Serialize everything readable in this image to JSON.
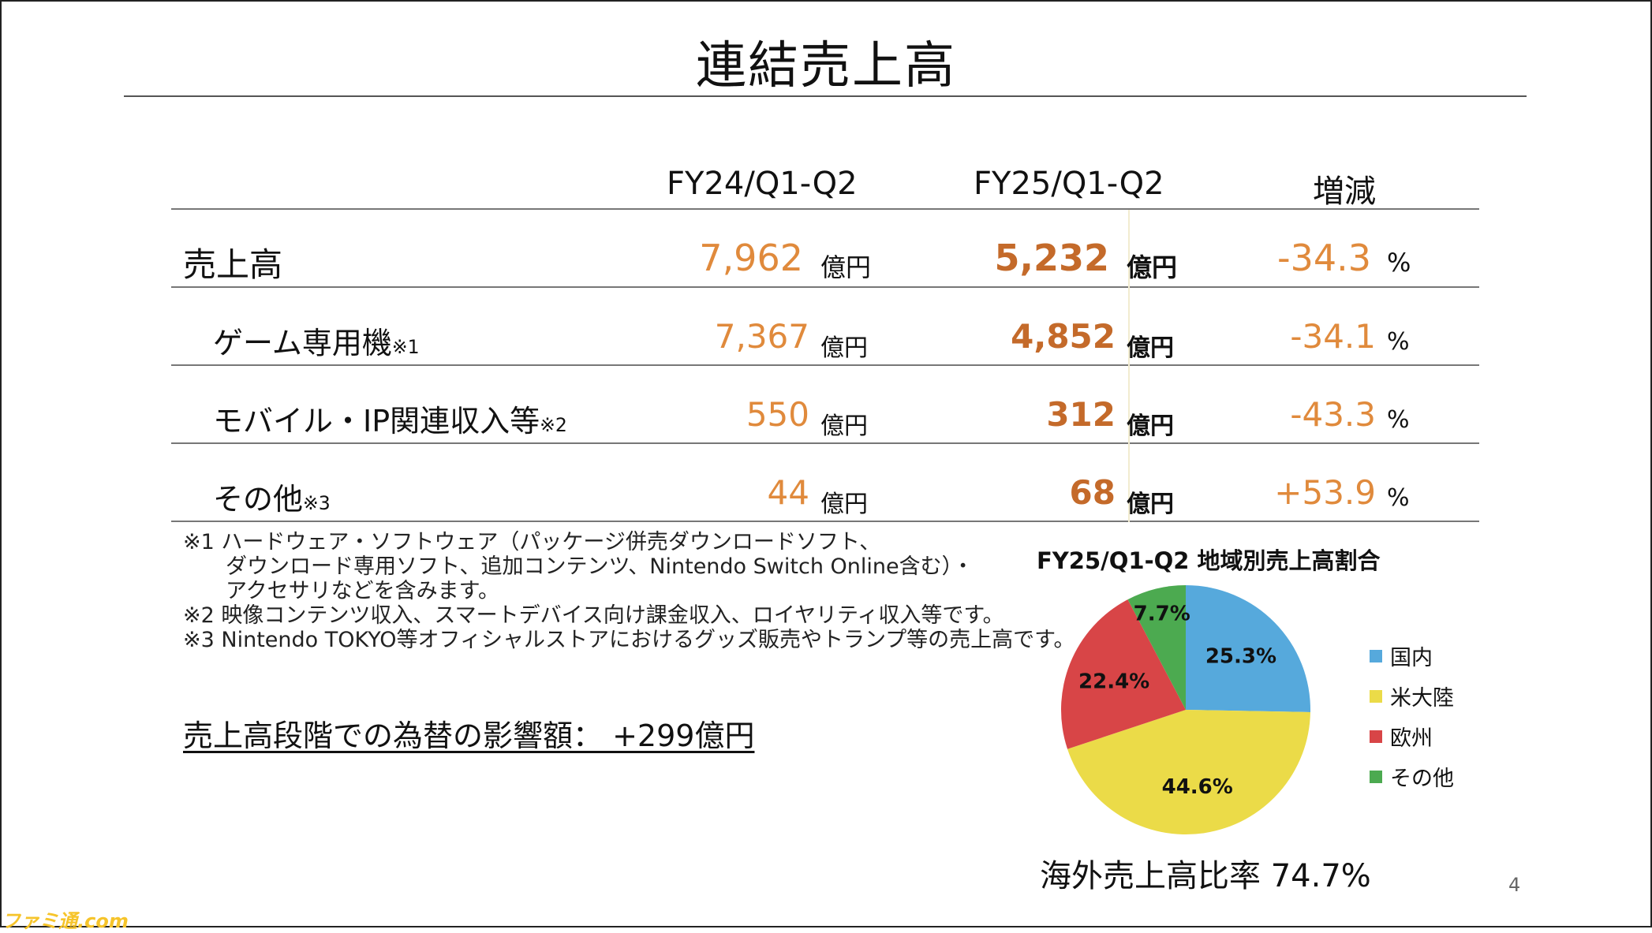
{
  "title": "連結売上高",
  "columns": {
    "prev": "FY24/Q1-Q2",
    "curr": "FY25/Q1-Q2",
    "change": "増減"
  },
  "rows": [
    {
      "label": "売上高",
      "note": "",
      "prev": "7,962",
      "prev_unit": "億円",
      "curr": "5,232",
      "curr_unit": "億円",
      "change": "-34.3",
      "change_unit": "%"
    },
    {
      "label": "ゲーム専用機",
      "note": "※1",
      "prev": "7,367",
      "prev_unit": "億円",
      "curr": "4,852",
      "curr_unit": "億円",
      "change": "-34.1",
      "change_unit": "%"
    },
    {
      "label": "モバイル・IP関連収入等",
      "note": "※2",
      "prev": "550",
      "prev_unit": "億円",
      "curr": "312",
      "curr_unit": "億円",
      "change": "-43.3",
      "change_unit": "%"
    },
    {
      "label": "その他",
      "note": "※3",
      "prev": "44",
      "prev_unit": "億円",
      "curr": "68",
      "curr_unit": "億円",
      "change": "+53.9",
      "change_unit": "%"
    }
  ],
  "notes": [
    "※1 ハードウェア・ソフトウェア（パッケージ併売ダウンロードソフト、",
    "　　ダウンロード専用ソフト、追加コンテンツ、Nintendo Switch Online含む）・",
    "　　アクセサリなどを含みます。",
    "※2 映像コンテンツ収入、スマートデバイス向け課金収入、ロイヤリティ収入等です。",
    "※3 Nintendo TOKYO等オフィシャルストアにおけるグッズ販売やトランプ等の売上高です。"
  ],
  "fx_impact": "売上高段階での為替の影響額：  +299億円",
  "chart_data": {
    "type": "pie",
    "title": "FY25/Q1-Q2 地域別売上高割合",
    "slices": [
      {
        "name": "国内",
        "value": 25.3,
        "label": "25.3%",
        "color": "#56a9dc"
      },
      {
        "name": "米大陸",
        "value": 44.6,
        "label": "44.6%",
        "color": "#ebdb48"
      },
      {
        "name": "欧州",
        "value": 22.4,
        "label": "22.4%",
        "color": "#d84547"
      },
      {
        "name": "その他",
        "value": 7.7,
        "label": "7.7%",
        "color": "#4caa50"
      }
    ],
    "legend": "right"
  },
  "overseas_ratio": "海外売上高比率 74.7%",
  "page_number": "4",
  "watermark": "ファミ通.com"
}
